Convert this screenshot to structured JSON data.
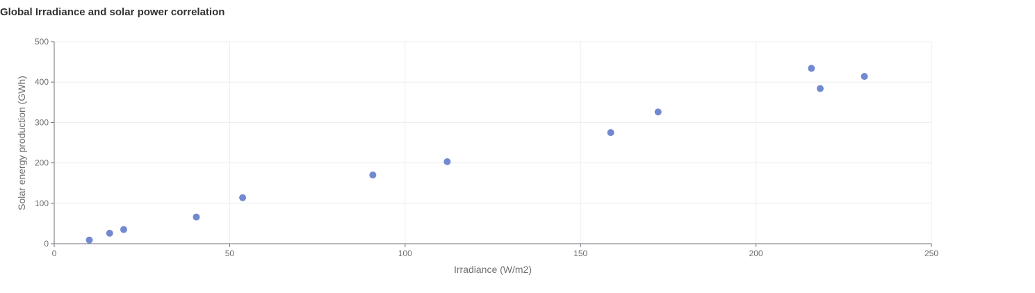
{
  "chart_data": {
    "type": "scatter",
    "title": "Global Irradiance and solar power correlation",
    "xlabel": "Irradiance (W/m2)",
    "ylabel": "Solar energy production (GWh)",
    "xlim": [
      0,
      250
    ],
    "ylim": [
      0,
      500
    ],
    "x_ticks": [
      0,
      50,
      100,
      150,
      200,
      250
    ],
    "y_ticks": [
      0,
      100,
      200,
      300,
      400,
      500
    ],
    "grid": true,
    "legend": "none",
    "series": [
      {
        "color": "#7289d1",
        "points": [
          {
            "x": 10,
            "y": 9
          },
          {
            "x": 15.8,
            "y": 26
          },
          {
            "x": 19.8,
            "y": 35
          },
          {
            "x": 40.5,
            "y": 66
          },
          {
            "x": 53.7,
            "y": 114
          },
          {
            "x": 90.8,
            "y": 170
          },
          {
            "x": 112,
            "y": 203
          },
          {
            "x": 158.6,
            "y": 275
          },
          {
            "x": 172.1,
            "y": 326
          },
          {
            "x": 215.8,
            "y": 434
          },
          {
            "x": 218.3,
            "y": 384
          },
          {
            "x": 230.9,
            "y": 414
          }
        ]
      }
    ]
  }
}
